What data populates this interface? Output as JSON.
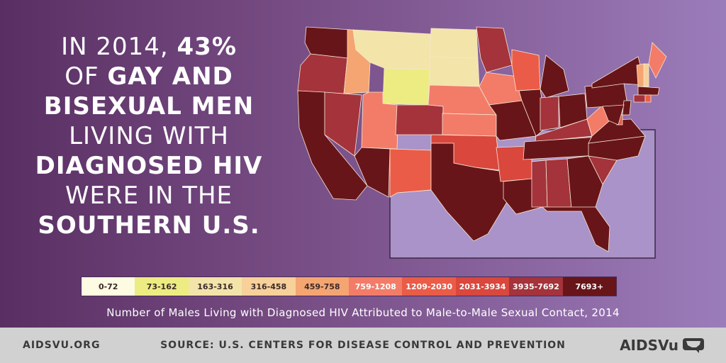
{
  "headline": {
    "lines": [
      [
        {
          "t": "IN 2014, ",
          "w": "light"
        },
        {
          "t": "43%",
          "w": "bold"
        }
      ],
      [
        {
          "t": "OF ",
          "w": "light"
        },
        {
          "t": "GAY AND",
          "w": "bold"
        }
      ],
      [
        {
          "t": "BISEXUAL MEN",
          "w": "bold"
        }
      ],
      [
        {
          "t": "LIVING WITH",
          "w": "light"
        }
      ],
      [
        {
          "t": "DIAGNOSED HIV",
          "w": "bold"
        }
      ],
      [
        {
          "t": "WERE IN THE",
          "w": "light"
        }
      ],
      [
        {
          "t": "SOUTHERN U.S.",
          "w": "bold"
        }
      ]
    ]
  },
  "map": {
    "highlight_region": "South",
    "region_fill": "#a993c8",
    "border_color": "#f6e6d2",
    "state_bins": {
      "WA": 9,
      "OR": 8,
      "CA": 9,
      "NV": 8,
      "ID": 4,
      "MT": 2,
      "WY": 1,
      "UT": 5,
      "AZ": 9,
      "CO": 8,
      "NM": 6,
      "ND": 2,
      "SD": 2,
      "NE": 5,
      "KS": 5,
      "OK": 7,
      "TX": 9,
      "MN": 8,
      "IA": 5,
      "MO": 9,
      "AR": 7,
      "LA": 9,
      "WI": 6,
      "IL": 9,
      "MI": 9,
      "IN": 8,
      "OH": 9,
      "KY": 8,
      "TN": 9,
      "MS": 8,
      "AL": 8,
      "GA": 9,
      "FL": 9,
      "SC": 8,
      "NC": 9,
      "VA": 9,
      "WV": 5,
      "PA": 9,
      "NY": 9,
      "ME": 5,
      "NH": 3,
      "VT": 4,
      "MA": 9,
      "CT": 8,
      "RI": 6,
      "NJ": 9,
      "DE": 6,
      "MD": 9
    }
  },
  "legend": {
    "bins": [
      {
        "label": "0-72",
        "color": "#fdfbe2",
        "text": "#3a2a2a"
      },
      {
        "label": "73-162",
        "color": "#ecec82",
        "text": "#3a2a2a"
      },
      {
        "label": "163-316",
        "color": "#f3e4a9",
        "text": "#3a2a2a"
      },
      {
        "label": "316-458",
        "color": "#f7d09a",
        "text": "#3a2a2a"
      },
      {
        "label": "459-758",
        "color": "#f4a571",
        "text": "#3a2a2a"
      },
      {
        "label": "759-1208",
        "color": "#f27c68",
        "text": "#ffffff"
      },
      {
        "label": "1209-2030",
        "color": "#ea5c47",
        "text": "#ffffff"
      },
      {
        "label": "2031-3934",
        "color": "#d9473d",
        "text": "#ffffff"
      },
      {
        "label": "3935-7692",
        "color": "#a4333b",
        "text": "#ffffff"
      },
      {
        "label": "7693+",
        "color": "#681519",
        "text": "#ffffff"
      }
    ]
  },
  "caption": "Number of Males Living with Diagnosed HIV Attributed to Male-to-Male Sexual Contact, 2014",
  "footer": {
    "site": "AIDSVU.ORG",
    "source": "SOURCE: U.S. CENTERS FOR DISEASE CONTROL AND PREVENTION",
    "logo_text": "AIDSVu"
  }
}
